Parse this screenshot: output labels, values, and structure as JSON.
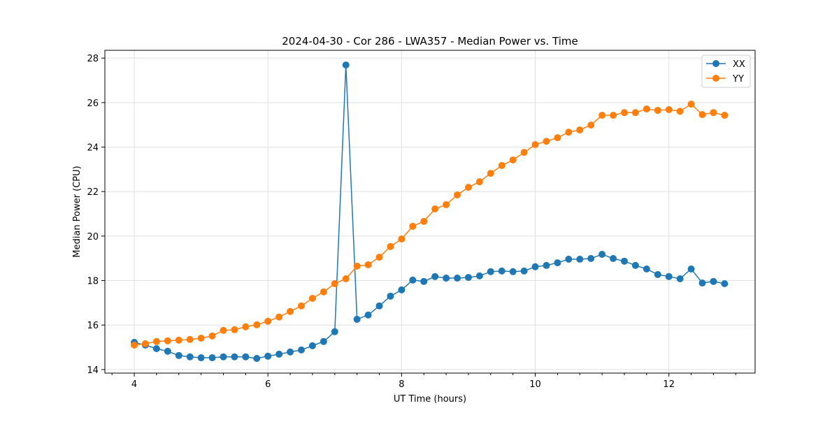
{
  "chart_data": {
    "type": "line",
    "title": "2024-04-30 - Cor 286 - LWA357 - Median Power vs. Time",
    "xlabel": "UT Time (hours)",
    "ylabel": "Median Power (CPU)",
    "xlim": [
      3.56,
      13.29
    ],
    "ylim": [
      13.84,
      28.35
    ],
    "xticks": [
      4,
      6,
      8,
      10,
      12
    ],
    "xtick_labels": [
      "4",
      "6",
      "8",
      "10",
      "12"
    ],
    "yticks": [
      14,
      16,
      18,
      20,
      22,
      24,
      26,
      28
    ],
    "ytick_labels": [
      "14",
      "16",
      "18",
      "20",
      "22",
      "24",
      "26",
      "28"
    ],
    "grid": true,
    "legend_position": "top-right",
    "x_start": 4.0,
    "x_step_hours": 0.16667,
    "series": [
      {
        "name": "XX",
        "color": "#1f77b4",
        "values": [
          15.22,
          15.1,
          14.94,
          14.82,
          14.63,
          14.57,
          14.53,
          14.53,
          14.57,
          14.57,
          14.57,
          14.5,
          14.6,
          14.69,
          14.79,
          14.88,
          15.07,
          15.26,
          15.7,
          27.69,
          16.26,
          16.45,
          16.86,
          17.3,
          17.58,
          18.02,
          17.96,
          18.18,
          18.11,
          18.11,
          18.14,
          18.21,
          18.4,
          18.43,
          18.4,
          18.43,
          18.62,
          18.68,
          18.8,
          18.96,
          18.96,
          18.99,
          19.18,
          18.99,
          18.87,
          18.68,
          18.52,
          18.27,
          18.18,
          18.08,
          18.52,
          17.89,
          17.96,
          17.86
        ]
      },
      {
        "name": "YY",
        "color": "#ff7f0e",
        "values": [
          15.1,
          15.16,
          15.26,
          15.29,
          15.32,
          15.35,
          15.41,
          15.51,
          15.76,
          15.79,
          15.92,
          16.01,
          16.17,
          16.36,
          16.61,
          16.86,
          17.2,
          17.49,
          17.86,
          18.08,
          18.65,
          18.71,
          19.05,
          19.53,
          19.87,
          20.44,
          20.66,
          21.22,
          21.41,
          21.85,
          22.19,
          22.44,
          22.82,
          23.17,
          23.42,
          23.76,
          24.11,
          24.26,
          24.42,
          24.67,
          24.77,
          24.99,
          25.43,
          25.43,
          25.55,
          25.55,
          25.71,
          25.65,
          25.68,
          25.61,
          25.93,
          25.46,
          25.55,
          25.43
        ]
      }
    ]
  }
}
